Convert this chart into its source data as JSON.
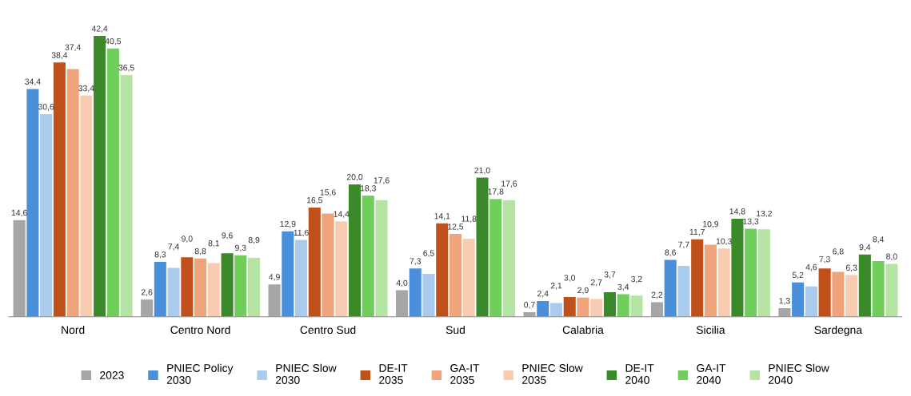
{
  "chart_data": {
    "type": "bar",
    "categories": [
      "Nord",
      "Centro Nord",
      "Centro Sud",
      "Sud",
      "Calabria",
      "Sicilia",
      "Sardegna"
    ],
    "legend": "bottom",
    "grid": false,
    "series": [
      {
        "name": "2023",
        "color": "#a6a6a6",
        "values": [
          14.6,
          2.6,
          4.9,
          4.0,
          0.7,
          2.2,
          1.3
        ],
        "value_labels": [
          "14,6",
          "2,6",
          "4,9",
          "4,0",
          "0,7",
          "2,2",
          "1,3"
        ]
      },
      {
        "name": "PNIEC Policy\n2030",
        "color": "#4a8fdc",
        "values": [
          34.4,
          8.3,
          12.9,
          7.3,
          2.4,
          8.6,
          5.2
        ],
        "value_labels": [
          "34,4",
          "8,3",
          "12,9",
          "7,3",
          "2,4",
          "8,6",
          "5,2"
        ]
      },
      {
        "name": "PNIEC Slow\n2030",
        "color": "#a9cbee",
        "values": [
          30.6,
          7.4,
          11.6,
          6.5,
          2.1,
          7.7,
          4.6
        ],
        "value_labels": [
          "30,6",
          "7,4",
          "11,6",
          "6,5",
          "2,1",
          "7,7",
          "4,6"
        ]
      },
      {
        "name": "DE-IT\n2035",
        "color": "#c0501a",
        "values": [
          38.4,
          9.0,
          16.5,
          14.1,
          3.0,
          11.7,
          7.3
        ],
        "value_labels": [
          "38,4",
          "9,0",
          "16,5",
          "14,1",
          "3,0",
          "11,7",
          "7,3"
        ]
      },
      {
        "name": "GA-IT\n2035",
        "color": "#f0a47c",
        "values": [
          37.4,
          8.8,
          15.6,
          12.5,
          2.9,
          10.9,
          6.8
        ],
        "value_labels": [
          "37,4",
          "8,8",
          "15,6",
          "12,5",
          "2,9",
          "10,9",
          "6,8"
        ]
      },
      {
        "name": "PNIEC Slow\n2035",
        "color": "#f8ccb0",
        "values": [
          33.4,
          8.1,
          14.4,
          11.8,
          2.7,
          10.3,
          6.3
        ],
        "value_labels": [
          "33,4",
          "8,1",
          "14,4",
          "11,8",
          "2,7",
          "10,3",
          "6,3"
        ]
      },
      {
        "name": "DE-IT\n2040",
        "color": "#3a8a2a",
        "values": [
          42.4,
          9.6,
          20.0,
          21.0,
          3.7,
          14.8,
          9.4
        ],
        "value_labels": [
          "42,4",
          "9,6",
          "20,0",
          "21,0",
          "3,7",
          "14,8",
          "9,4"
        ]
      },
      {
        "name": "GA-IT\n2040",
        "color": "#6fcf5a",
        "values": [
          40.5,
          9.3,
          18.3,
          17.8,
          3.4,
          13.3,
          8.4
        ],
        "value_labels": [
          "40,5",
          "9,3",
          "18,3",
          "17,8",
          "3,4",
          "13,3",
          "8,4"
        ]
      },
      {
        "name": "PNIEC Slow\n2040",
        "color": "#b5e3a3",
        "values": [
          36.5,
          8.9,
          17.6,
          17.6,
          3.2,
          13.2,
          8.0
        ],
        "value_labels": [
          "36,5",
          "8,9",
          "17,6",
          "17,6",
          "3,2",
          "13,2",
          "8,0"
        ]
      }
    ]
  }
}
